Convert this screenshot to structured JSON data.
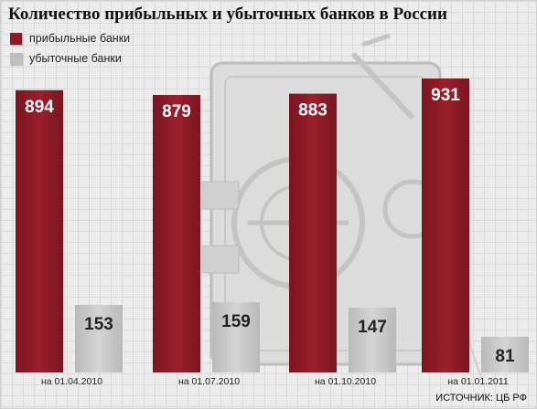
{
  "title": "Количество  прибыльных и убыточных банков в России",
  "legend": [
    {
      "label": "прибыльные банки",
      "color": "#8b1a24"
    },
    {
      "label": "убыточные банки",
      "color": "#bfbfbf"
    }
  ],
  "source": "ИСТОЧНИК: ЦБ РФ",
  "colors": {
    "profitable": "#8b1a24",
    "unprofitable": "#c6c6c6",
    "label_dark": "#222222",
    "label_light": "#ffffff"
  },
  "chart_data": {
    "type": "bar",
    "title": "Количество  прибыльных и убыточных банков в России",
    "categories": [
      "на 01.04.2010",
      "на 01.07.2010",
      "на 01.10.2010",
      "на 01.01.2011"
    ],
    "series": [
      {
        "name": "прибыльные банки",
        "values": [
          894,
          879,
          883,
          931
        ]
      },
      {
        "name": "убыточные банки",
        "values": [
          153,
          159,
          147,
          81
        ]
      }
    ],
    "xlabel": "",
    "ylabel": "",
    "grid": false,
    "legend_position": "top-left"
  }
}
